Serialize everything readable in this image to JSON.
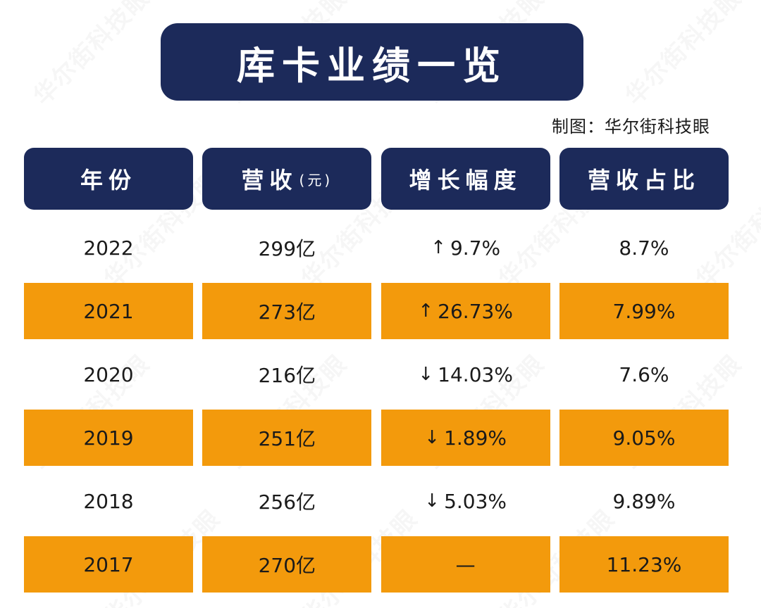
{
  "title": "库卡业绩一览",
  "credit": "制图：华尔街科技眼",
  "watermark": "华尔街科技眼",
  "colors": {
    "navy": "#1c2a5a",
    "orange": "#f39a0c"
  },
  "chart_data": {
    "type": "table",
    "title": "库卡业绩一览",
    "headers": {
      "year": "年份",
      "revenue": "营收",
      "revenue_unit": "(元)",
      "growth": "增长幅度",
      "share": "营收占比"
    },
    "rows": [
      {
        "year": "2022",
        "revenue": "299亿",
        "growth_arrow": "↑",
        "growth": "9.7%",
        "share": "8.7%",
        "highlight": false
      },
      {
        "year": "2021",
        "revenue": "273亿",
        "growth_arrow": "↑",
        "growth": "26.73%",
        "share": "7.99%",
        "highlight": true
      },
      {
        "year": "2020",
        "revenue": "216亿",
        "growth_arrow": "↓",
        "growth": "14.03%",
        "share": "7.6%",
        "highlight": false
      },
      {
        "year": "2019",
        "revenue": "251亿",
        "growth_arrow": "↓",
        "growth": "1.89%",
        "share": "9.05%",
        "highlight": true
      },
      {
        "year": "2018",
        "revenue": "256亿",
        "growth_arrow": "↓",
        "growth": "5.03%",
        "share": "9.89%",
        "highlight": false
      },
      {
        "year": "2017",
        "revenue": "270亿",
        "growth_arrow": "",
        "growth": "—",
        "share": "11.23%",
        "highlight": true
      }
    ]
  }
}
